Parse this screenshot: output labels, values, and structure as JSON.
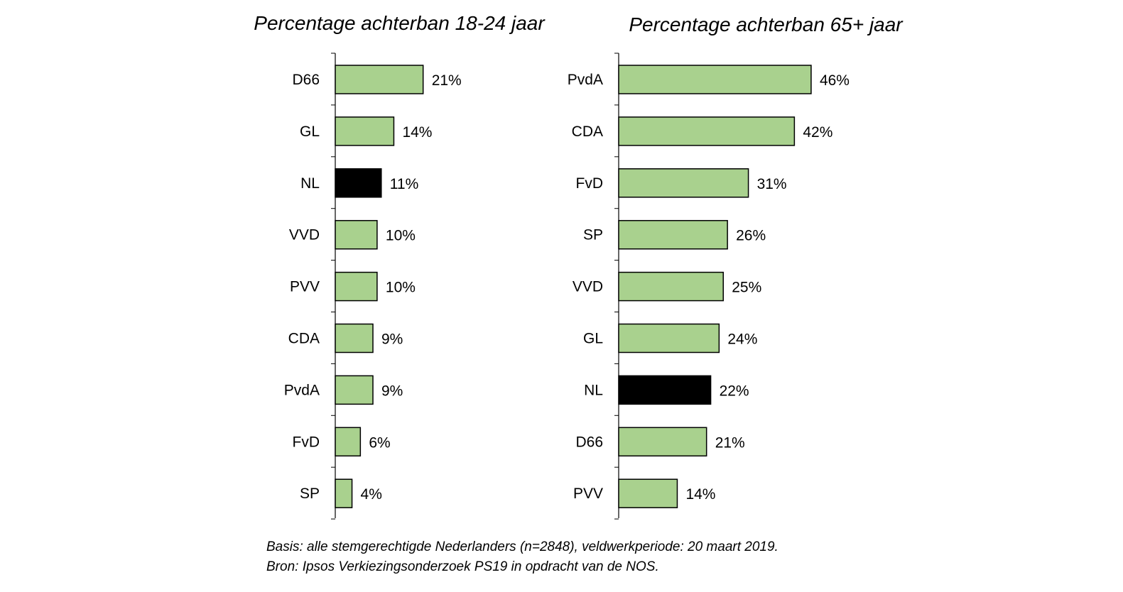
{
  "colors": {
    "bar_default": "#a9d18e",
    "bar_highlight": "#000000",
    "bar_stroke": "#000000",
    "axis": "#000000"
  },
  "chart_data": [
    {
      "type": "bar",
      "orientation": "horizontal",
      "title": "Percentage achterban 18-24 jaar",
      "categories": [
        "D66",
        "GL",
        "NL",
        "VVD",
        "PVV",
        "CDA",
        "PvdA",
        "FvD",
        "SP"
      ],
      "values": [
        21,
        14,
        11,
        10,
        10,
        9,
        9,
        6,
        4
      ],
      "value_labels": [
        "21%",
        "14%",
        "11%",
        "10%",
        "10%",
        "9%",
        "9%",
        "6%",
        "4%"
      ],
      "highlight": "NL",
      "unit": "%",
      "xlim": [
        0,
        50
      ]
    },
    {
      "type": "bar",
      "orientation": "horizontal",
      "title": "Percentage achterban 65+ jaar",
      "categories": [
        "PvdA",
        "CDA",
        "FvD",
        "SP",
        "VVD",
        "GL",
        "NL",
        "D66",
        "PVV"
      ],
      "values": [
        46,
        42,
        31,
        26,
        25,
        24,
        22,
        21,
        14
      ],
      "value_labels": [
        "46%",
        "42%",
        "31%",
        "26%",
        "25%",
        "24%",
        "22%",
        "21%",
        "14%"
      ],
      "highlight": "NL",
      "unit": "%",
      "xlim": [
        0,
        50
      ]
    }
  ],
  "footnotes": {
    "basis": "Basis: alle stemgerechtigde Nederlanders (n=2848), veldwerkperiode: 20 maart 2019.",
    "source": "Bron: Ipsos Verkiezingsonderzoek PS19 in opdracht van de NOS."
  }
}
